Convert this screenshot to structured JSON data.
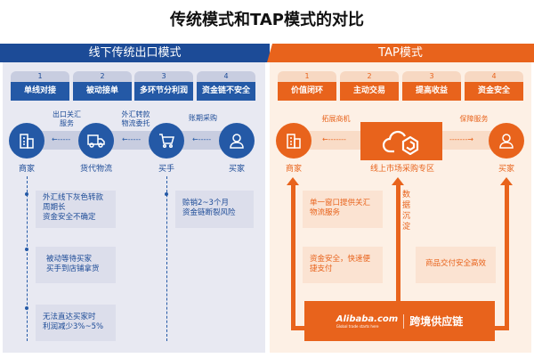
{
  "title": "传统模式和TAP模式的对比",
  "colors": {
    "blue": "#1c4b97",
    "orange": "#e8631c"
  },
  "left": {
    "header": "线下传统出口模式",
    "tabs": [
      {
        "n": "1",
        "label": "单线对接"
      },
      {
        "n": "2",
        "label": "被动接单"
      },
      {
        "n": "3",
        "label": "多环节分利润"
      },
      {
        "n": "4",
        "label": "资金链不安全"
      }
    ],
    "nodes": [
      {
        "label": "商家",
        "icon": "building-icon"
      },
      {
        "label": "货代物流",
        "icon": "truck-icon"
      },
      {
        "label": "买手",
        "icon": "cart-icon"
      },
      {
        "label": "买家",
        "icon": "user-icon"
      }
    ],
    "flows": [
      {
        "l1": "出口关汇",
        "l2": "服务"
      },
      {
        "l1": "外汇转款",
        "l2": "物流委托"
      },
      {
        "l1": "账期采购",
        "l2": ""
      }
    ],
    "notes": [
      {
        "l1": "外汇线下灰色转款",
        "l2": "周期长",
        "l3": "资金安全不确定"
      },
      {
        "l1": "被动等待买家",
        "l2": "买手到店铺拿货"
      },
      {
        "l1": "无法直达买家时",
        "l2": "利润减少3%~5%"
      },
      {
        "l1": "赊销2~3个月",
        "l2": "资金链断裂风险"
      }
    ]
  },
  "right": {
    "header": "TAP模式",
    "tabs": [
      {
        "n": "1",
        "label": "价值闭环"
      },
      {
        "n": "2",
        "label": "主动交易"
      },
      {
        "n": "3",
        "label": "提高收益"
      },
      {
        "n": "4",
        "label": "资金安全"
      }
    ],
    "nodes": [
      {
        "label": "商家",
        "icon": "building-icon"
      },
      {
        "label": "线上市场采购专区",
        "icon": "cloud-icon"
      },
      {
        "label": "买家",
        "icon": "user-icon"
      }
    ],
    "flows": [
      "拓展商机",
      "保障服务"
    ],
    "data_label": "数据沉淀",
    "notes": [
      {
        "l1": "单一窗口提供关汇",
        "l2": "物流服务"
      },
      {
        "l1": "资金安全，快速便",
        "l2": "捷支付"
      },
      {
        "l1": "商品交付安全高效",
        "l2": ""
      }
    ],
    "platform": {
      "logo": "Alibaba.com",
      "tagline": "Global trade starts here",
      "label": "跨境供应链"
    }
  }
}
